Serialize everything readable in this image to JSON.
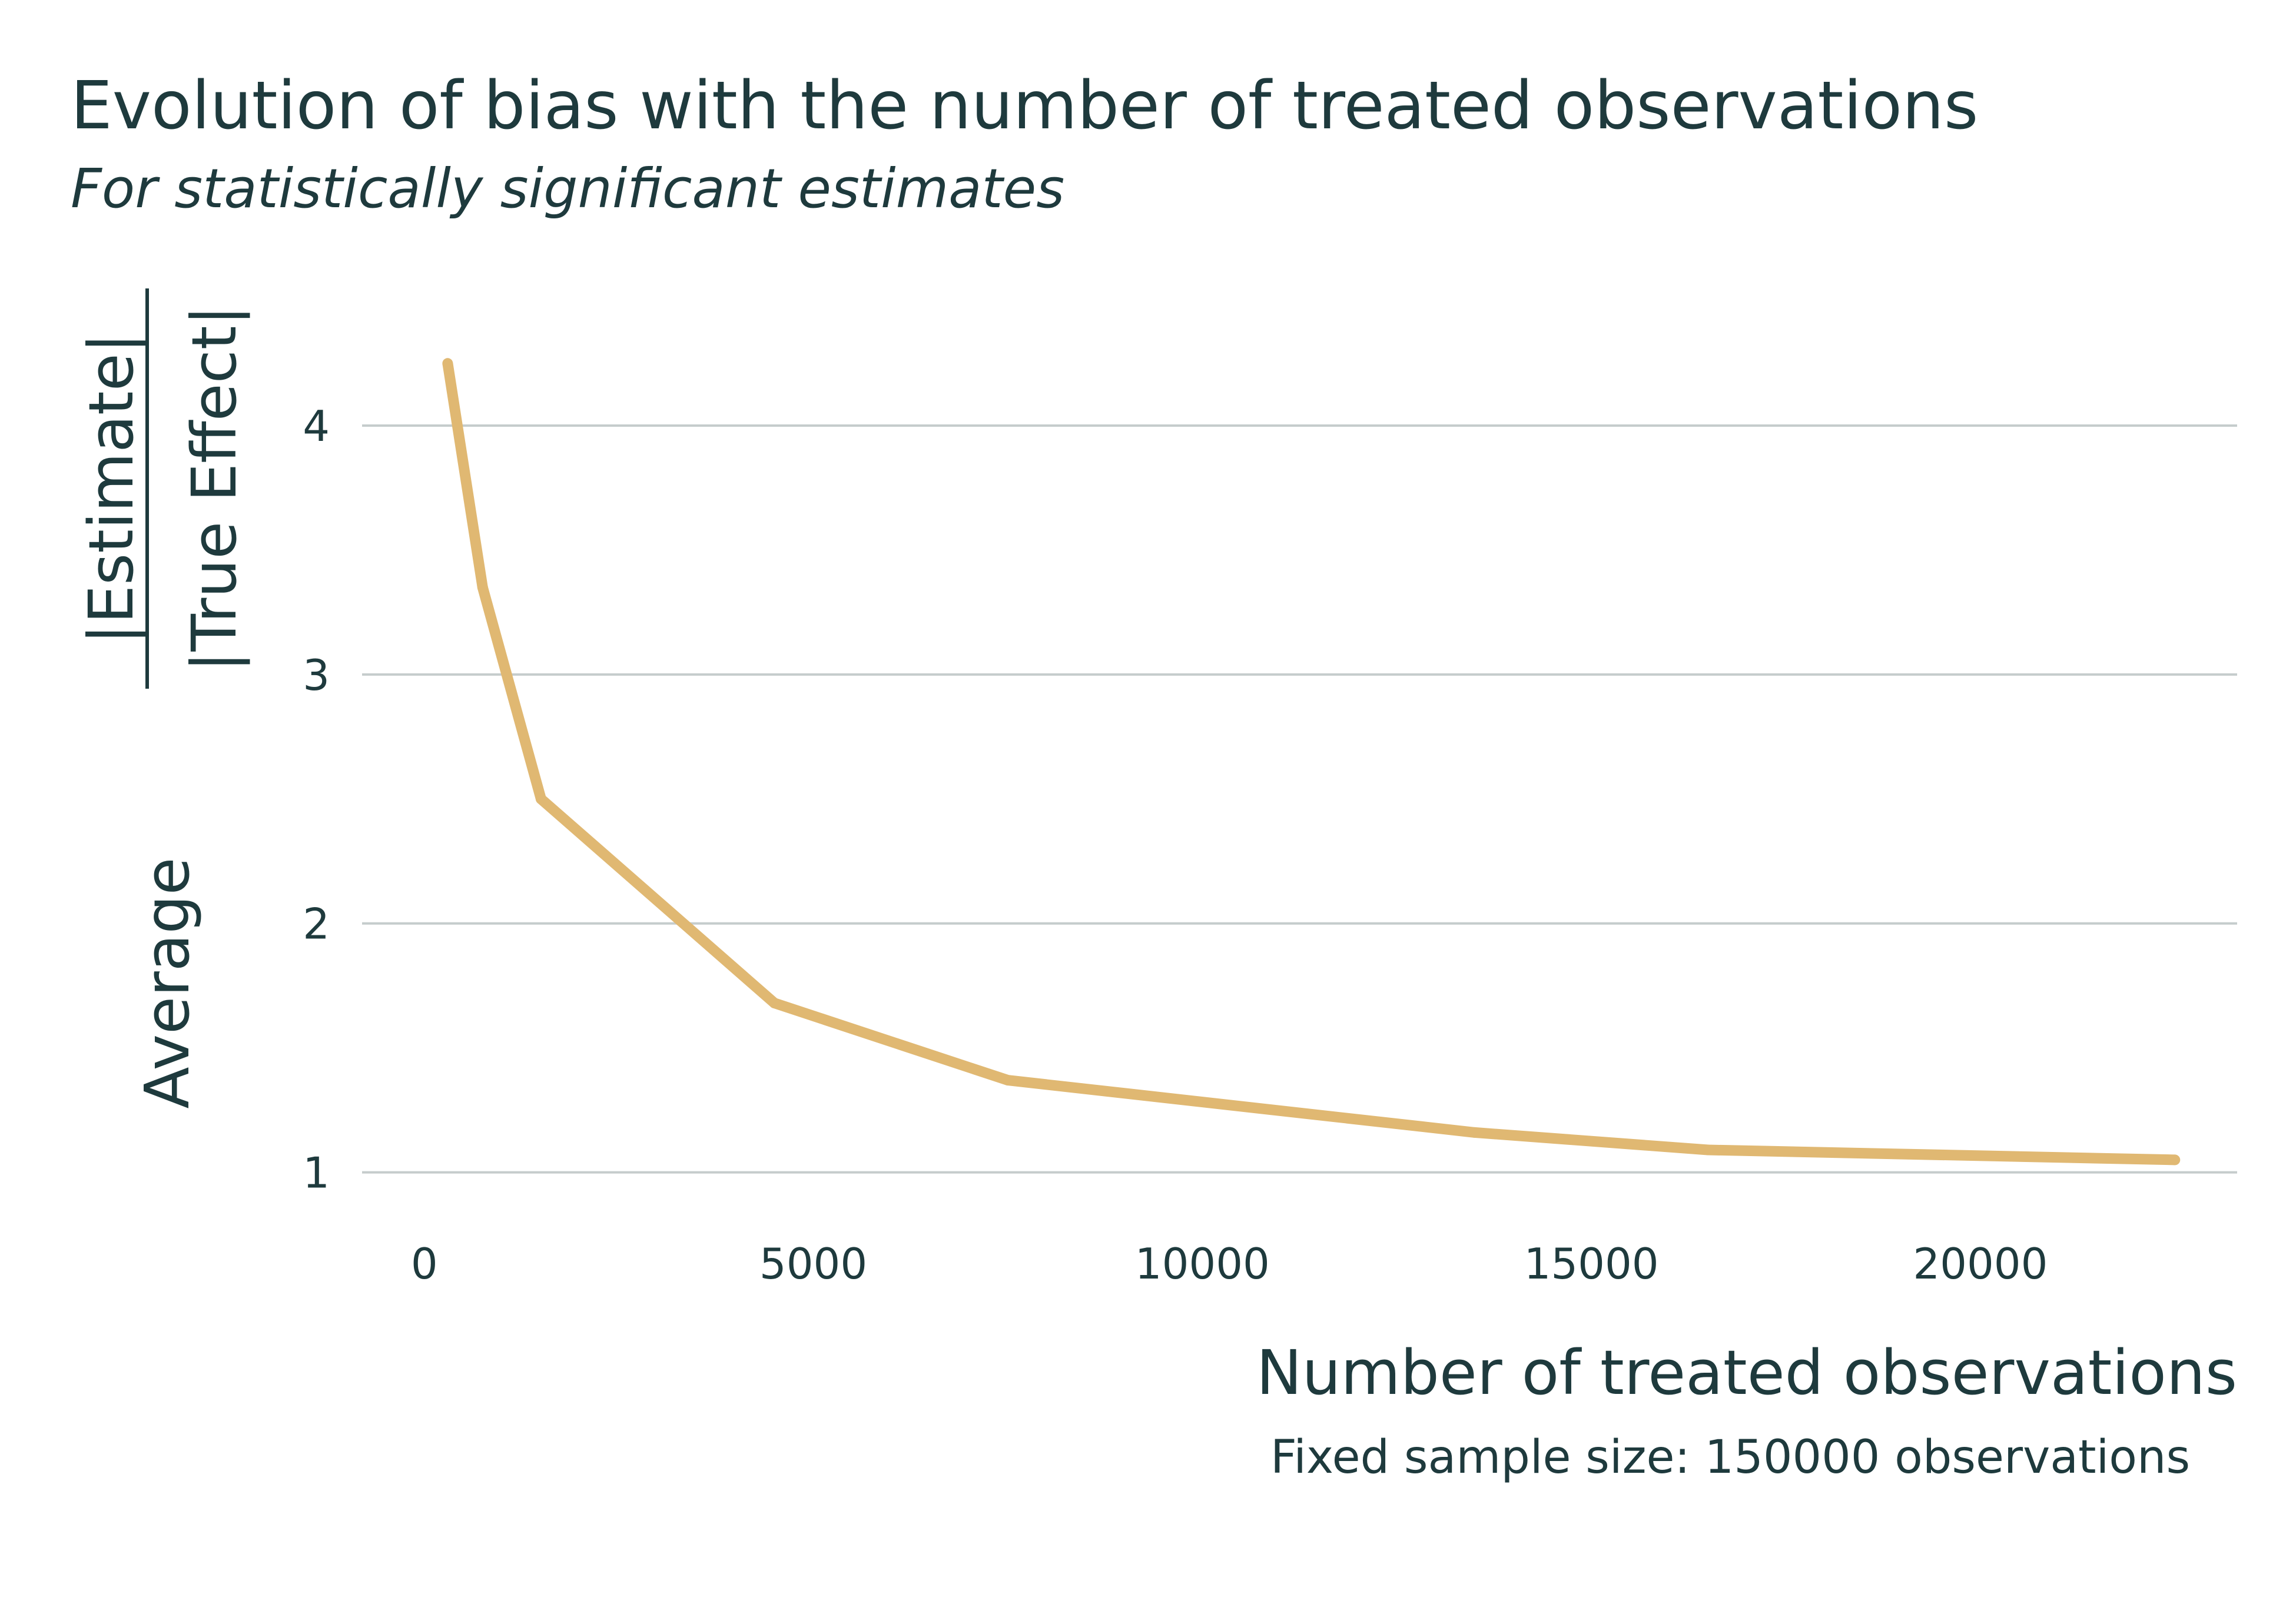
{
  "colors": {
    "line": "#e0b872",
    "text": "#1e3a3d",
    "grid": "#c5cccc"
  },
  "chart_data": {
    "type": "line",
    "title": "Evolution of bias with the number of treated observations",
    "subtitle": "For statistically significant estimates",
    "xlabel": "Number of treated observations",
    "ylabel": {
      "prefix": "Average",
      "numerator": "|Estimate|",
      "denominator": "|True Effect|"
    },
    "caption": "Fixed sample size: 150000 observations",
    "xlim": [
      -800,
      23300
    ],
    "ylim": [
      0.85,
      4.35
    ],
    "x_ticks": [
      "0",
      "5000",
      "10000",
      "15000",
      "20000"
    ],
    "x_tick_values": [
      0,
      5000,
      10000,
      15000,
      20000
    ],
    "y_ticks": [
      "1",
      "2",
      "3",
      "4"
    ],
    "y_tick_values": [
      1,
      2,
      3,
      4
    ],
    "grid": "horizontal",
    "series": [
      {
        "x": [
          300,
          750,
          1500,
          4500,
          7500,
          13500,
          16500,
          22500
        ],
        "y": [
          4.25,
          3.35,
          2.5,
          1.68,
          1.37,
          1.16,
          1.09,
          1.05
        ]
      }
    ]
  }
}
